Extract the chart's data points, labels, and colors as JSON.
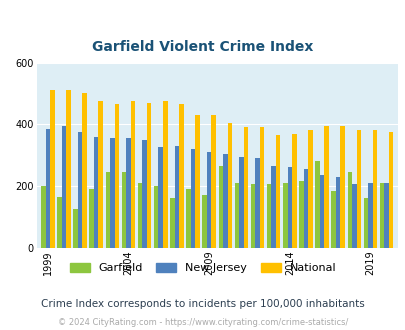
{
  "title": "Garfield Violent Crime Index",
  "title_color": "#1a5276",
  "subtitle": "Crime Index corresponds to incidents per 100,000 inhabitants",
  "footer": "© 2024 CityRating.com - https://www.cityrating.com/crime-statistics/",
  "years": [
    1999,
    2000,
    2001,
    2002,
    2003,
    2004,
    2005,
    2006,
    2007,
    2008,
    2009,
    2010,
    2011,
    2012,
    2013,
    2014,
    2015,
    2016,
    2017,
    2018,
    2019,
    2020
  ],
  "garfield": [
    200,
    165,
    125,
    190,
    245,
    245,
    210,
    200,
    160,
    190,
    170,
    265,
    210,
    205,
    205,
    210,
    215,
    280,
    185,
    245,
    160,
    210
  ],
  "new_jersey": [
    385,
    395,
    375,
    360,
    355,
    355,
    350,
    325,
    330,
    320,
    310,
    305,
    295,
    290,
    265,
    260,
    255,
    235,
    230,
    205,
    210,
    210
  ],
  "national": [
    510,
    510,
    500,
    475,
    465,
    475,
    470,
    475,
    465,
    430,
    430,
    405,
    390,
    390,
    365,
    370,
    380,
    395,
    395,
    380,
    380,
    375
  ],
  "ylim": [
    0,
    600
  ],
  "yticks": [
    0,
    200,
    400,
    600
  ],
  "x_tick_years": [
    1999,
    2004,
    2009,
    2014,
    2019
  ],
  "bar_width": 0.28,
  "garfield_color": "#8dc63f",
  "nj_color": "#4f81bd",
  "national_color": "#ffc000",
  "bg_color": "#deeef5",
  "grid_color": "#ffffff"
}
